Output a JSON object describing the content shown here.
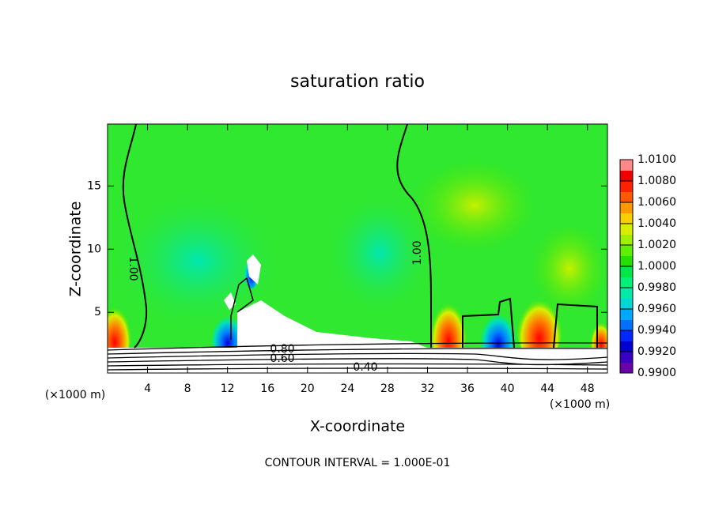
{
  "chart_data": {
    "type": "contour",
    "title": "saturation ratio",
    "x_label": "X-coordinate",
    "y_label": "Z-coordinate",
    "units": [
      "(×1000 m)",
      "(×1000 m)"
    ],
    "footer": "CONTOUR INTERVAL = 1.000E-01",
    "xlim": [
      0,
      50
    ],
    "xticks": [
      4,
      8,
      12,
      16,
      20,
      24,
      28,
      32,
      36,
      40,
      44,
      48
    ],
    "ylim": [
      0.2,
      19.9
    ],
    "yticks": [
      5,
      10,
      15
    ],
    "contour_labels": [
      "1.00",
      "1.00",
      "0.80",
      "0.60",
      "0.40"
    ],
    "colorbar": {
      "lim": [
        0.99,
        1.01
      ],
      "ticks": [
        {
          "value": 1.01,
          "label": "1.0100"
        },
        {
          "value": 1.008,
          "label": "1.0080"
        },
        {
          "value": 1.006,
          "label": "1.0060"
        },
        {
          "value": 1.004,
          "label": "1.0040"
        },
        {
          "value": 1.002,
          "label": "1.0020"
        },
        {
          "value": 1.0,
          "label": "1.0000"
        },
        {
          "value": 0.998,
          "label": "0.9980"
        },
        {
          "value": 0.996,
          "label": "0.9960"
        },
        {
          "value": 0.994,
          "label": "0.9940"
        },
        {
          "value": 0.992,
          "label": "0.9920"
        },
        {
          "value": 0.99,
          "label": "0.9900"
        }
      ],
      "colors": [
        "#6a00a8",
        "#3a00c0",
        "#0000d0",
        "#0028ff",
        "#0070ff",
        "#00a8ff",
        "#00d8d8",
        "#00eaa8",
        "#00f078",
        "#00e848",
        "#22e000",
        "#5ef000",
        "#a0f000",
        "#d8f000",
        "#f8d000",
        "#ff9800",
        "#ff5800",
        "#ff2000",
        "#ee0000",
        "#ff8888"
      ]
    }
  }
}
